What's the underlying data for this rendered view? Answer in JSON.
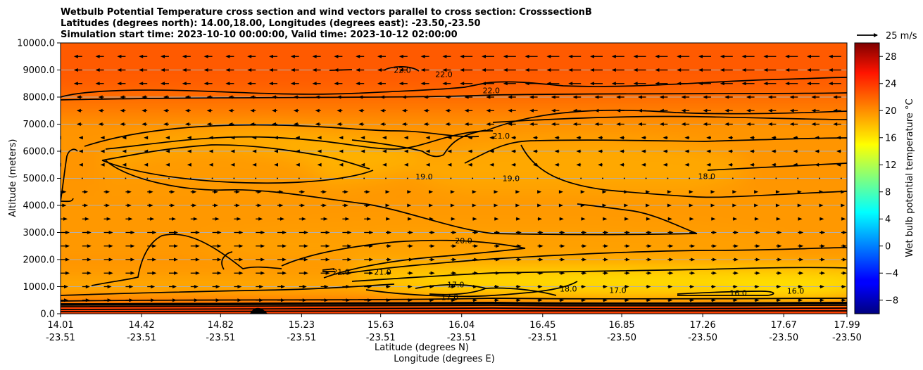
{
  "chart_data": {
    "type": "heatmap",
    "title_lines": [
      "Wetbulb Potential Temperature cross section and wind vectors parallel to cross section: CrosssectionB",
      "Latitudes (degrees north): 14.00,18.00, Longitudes (degrees east): -23.50,-23.50",
      "Simulation start time: 2023-10-10 00:00:00, Valid time: 2023-10-12 02:00:00"
    ],
    "ylabel": "Altitude (meters)",
    "xlabel": "Latitude (degrees N)",
    "xlabel2": "Longitude (degrees E)",
    "ylim": [
      0,
      10000
    ],
    "y_ticks": [
      "0.0",
      "1000.0",
      "2000.0",
      "3000.0",
      "4000.0",
      "5000.0",
      "6000.0",
      "7000.0",
      "8000.0",
      "9000.0",
      "10000.0"
    ],
    "x_ticks": [
      {
        "lat": "14.01",
        "lon": "-23.51"
      },
      {
        "lat": "14.42",
        "lon": "-23.51"
      },
      {
        "lat": "14.82",
        "lon": "-23.51"
      },
      {
        "lat": "15.23",
        "lon": "-23.51"
      },
      {
        "lat": "15.63",
        "lon": "-23.51"
      },
      {
        "lat": "16.04",
        "lon": "-23.51"
      },
      {
        "lat": "16.45",
        "lon": "-23.51"
      },
      {
        "lat": "16.85",
        "lon": "-23.50"
      },
      {
        "lat": "17.26",
        "lon": "-23.50"
      },
      {
        "lat": "17.67",
        "lon": "-23.50"
      },
      {
        "lat": "17.99",
        "lon": "-23.50"
      }
    ],
    "grid": "horizontal",
    "colorbar": {
      "label": "Wet bulb potential temperature $^\\circ$C",
      "label_display": "Wet bulb potential temperature °C",
      "min": -10,
      "max": 30,
      "ticks": [
        "−8",
        "−4",
        "0",
        "4",
        "8",
        "12",
        "16",
        "20",
        "24",
        "28"
      ],
      "tick_values": [
        -8,
        -4,
        0,
        4,
        8,
        12,
        16,
        20,
        24,
        28
      ],
      "colormap": "jet"
    },
    "quiver_key": {
      "label": "25 m/s",
      "speed": 25
    },
    "contour_labels": [
      {
        "text": "22.0",
        "lat": 15.95,
        "alt": 8840
      },
      {
        "text": "22.0",
        "lat": 15.74,
        "alt": 9000
      },
      {
        "text": "22.0",
        "lat": 16.19,
        "alt": 8250
      },
      {
        "text": "21.0",
        "lat": 16.24,
        "alt": 6570
      },
      {
        "text": "19.0",
        "lat": 15.85,
        "alt": 5060
      },
      {
        "text": "19.0",
        "lat": 16.29,
        "alt": 5000
      },
      {
        "text": "18.0",
        "lat": 17.28,
        "alt": 5080
      },
      {
        "text": "20.0",
        "lat": 16.05,
        "alt": 2700
      },
      {
        "text": "21.0",
        "lat": 15.43,
        "alt": 1550
      },
      {
        "text": "21.0",
        "lat": 15.64,
        "alt": 1550
      },
      {
        "text": "17.0",
        "lat": 16.01,
        "alt": 1080
      },
      {
        "text": "17.0",
        "lat": 15.98,
        "alt": 610
      },
      {
        "text": "18.0",
        "lat": 16.58,
        "alt": 920
      },
      {
        "text": "17.0",
        "lat": 16.83,
        "alt": 870
      },
      {
        "text": "16.0",
        "lat": 17.44,
        "alt": 760
      },
      {
        "text": "16.0",
        "lat": 17.73,
        "alt": 850
      }
    ],
    "temperature_field_notes": "surface ~24-26 C, yellow moist layer ~16-18 C near 500-1000 m, 19-21 C mid levels, 22-24 C aloft",
    "wind_regime": [
      {
        "alt_range": [
          0,
          4500
        ],
        "direction": "positive (toward higher latitude)"
      },
      {
        "alt_range": [
          5000,
          10000
        ],
        "direction": "negative (toward lower latitude)"
      }
    ]
  }
}
